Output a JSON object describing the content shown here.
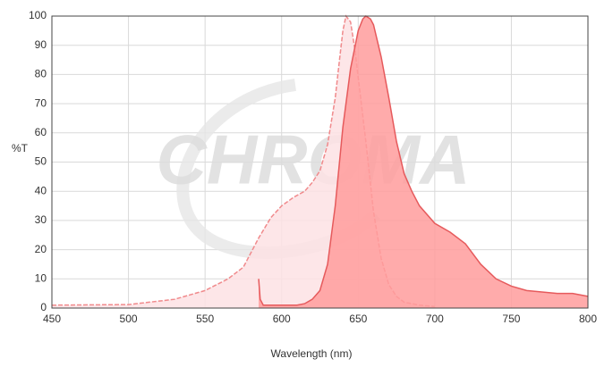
{
  "chart_data": {
    "type": "area",
    "watermark": "CHROMA",
    "x_label": "Wavelength (nm)",
    "y_label": "%T",
    "xlim": [
      450,
      800
    ],
    "ylim": [
      0,
      100
    ],
    "xticks": [
      450,
      500,
      550,
      600,
      650,
      700,
      750,
      800
    ],
    "yticks": [
      0,
      10,
      20,
      30,
      40,
      50,
      60,
      70,
      80,
      90,
      100
    ],
    "grid": true,
    "series": [
      {
        "color": "#f08a8c",
        "fill": "#fde2e4",
        "dashed": true,
        "x": [
          450,
          500,
          530,
          550,
          565,
          575,
          585,
          593,
          600,
          608,
          615,
          620,
          625,
          630,
          635,
          638,
          640,
          642,
          645,
          648,
          650,
          655,
          660,
          665,
          670,
          675,
          680,
          690,
          700
        ],
        "values": [
          1,
          1.2,
          3,
          6,
          10,
          14,
          24,
          31,
          35,
          38,
          40,
          43,
          47,
          56,
          72,
          86,
          95,
          100,
          98,
          88,
          79,
          57,
          33,
          17,
          8,
          4,
          2,
          1,
          0.5
        ]
      },
      {
        "color": "#e65a5c",
        "fill": "#ff9c9c",
        "dashed": false,
        "x": [
          585,
          586,
          588,
          600,
          610,
          615,
          620,
          625,
          630,
          635,
          640,
          645,
          650,
          653,
          655,
          658,
          660,
          665,
          670,
          675,
          680,
          685,
          690,
          700,
          710,
          720,
          730,
          740,
          750,
          760,
          770,
          780,
          790,
          800
        ],
        "values": [
          10,
          3,
          1,
          1,
          1,
          1.5,
          3,
          6,
          15,
          35,
          62,
          82,
          95,
          99,
          100,
          99,
          97,
          86,
          72,
          57,
          46,
          40,
          35,
          29,
          26,
          22,
          15,
          10,
          7.5,
          6,
          5.5,
          5,
          5,
          4
        ]
      }
    ]
  }
}
